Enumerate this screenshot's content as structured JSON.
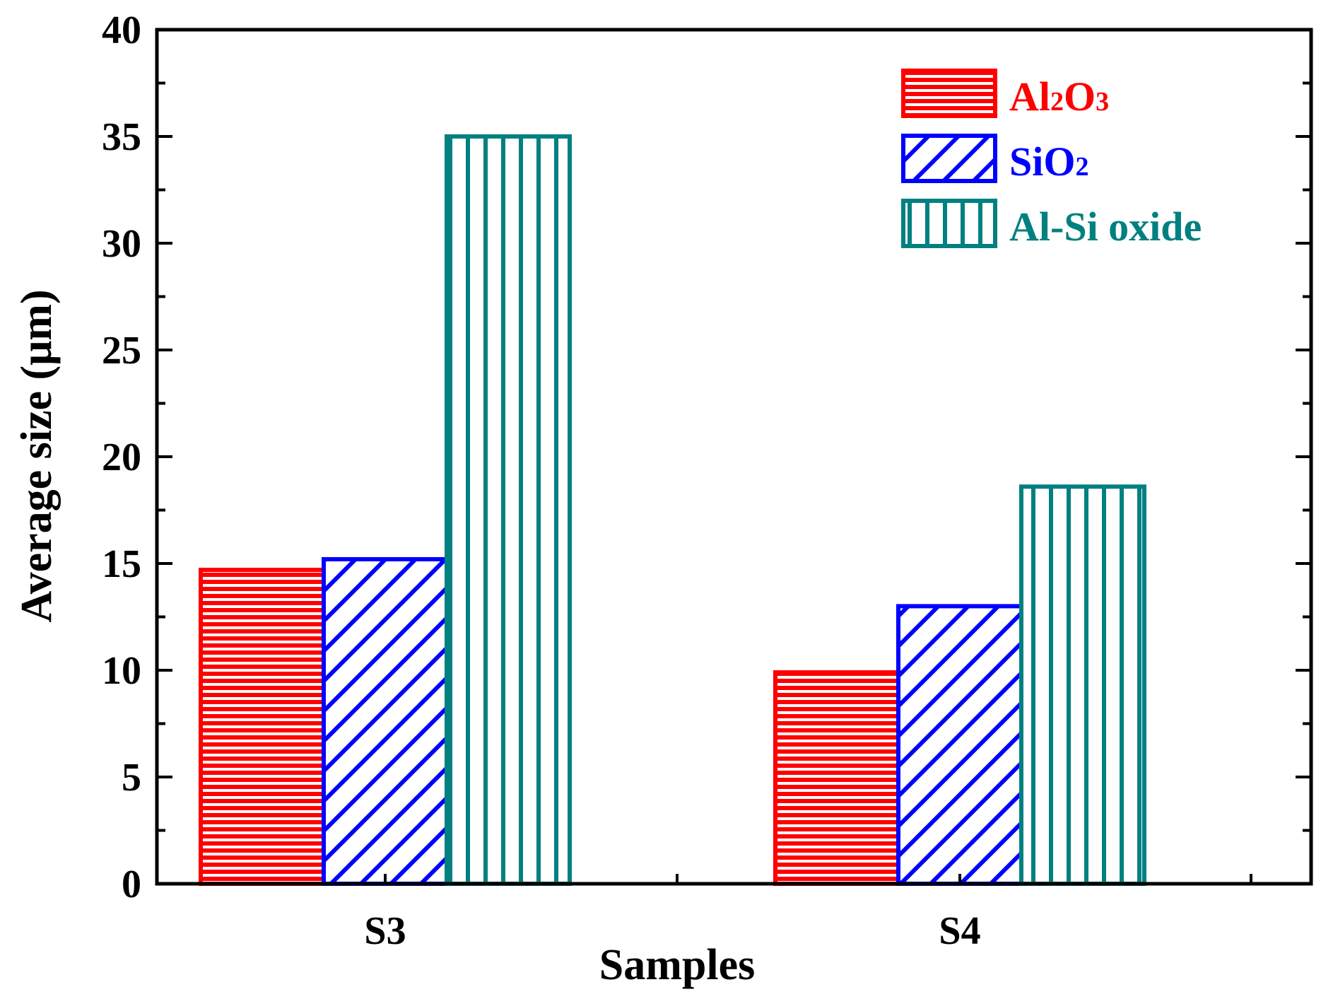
{
  "chart_data": {
    "type": "bar",
    "title": "",
    "xlabel": "Samples",
    "ylabel": "Average size (μm)",
    "categories": [
      "S3",
      "S4"
    ],
    "ylim": [
      0,
      40
    ],
    "yticks": [
      0,
      5,
      10,
      15,
      20,
      25,
      30,
      35,
      40
    ],
    "y_minor_step": 2.5,
    "legend_position": "top-right",
    "series": [
      {
        "name": "Al2O3",
        "label_main": "Al",
        "label_sub1": "2",
        "label_mid": "O",
        "label_sub2": "3",
        "values": [
          14.7,
          9.9
        ],
        "color": "#ff0000",
        "pattern": "horizontal"
      },
      {
        "name": "SiO2",
        "label_main": "SiO",
        "label_sub1": "2",
        "values": [
          15.2,
          13.0
        ],
        "color": "#0000ff",
        "pattern": "diagonal"
      },
      {
        "name": "Al-Si oxide",
        "label_main": "Al-Si oxide",
        "values": [
          35.0,
          18.6
        ],
        "color": "#008080",
        "pattern": "vertical"
      }
    ]
  }
}
